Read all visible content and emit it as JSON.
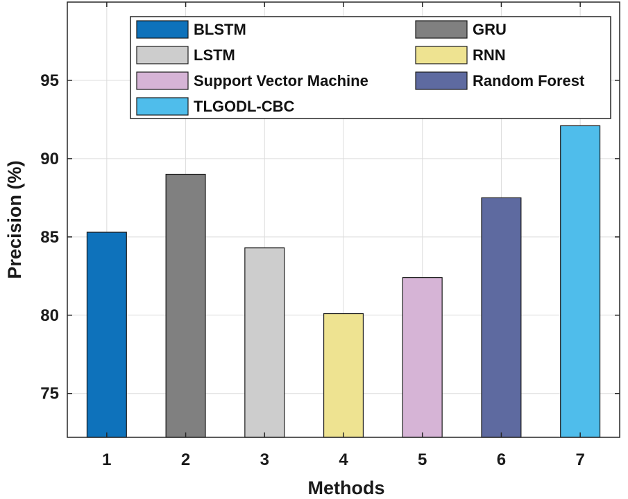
{
  "chart_data": {
    "type": "bar",
    "title": "",
    "xlabel": "Methods",
    "ylabel": "Precision (%)",
    "categories": [
      "1",
      "2",
      "3",
      "4",
      "5",
      "6",
      "7"
    ],
    "values": [
      85.3,
      89.0,
      84.3,
      80.1,
      82.4,
      87.5,
      92.1
    ],
    "ylim": [
      72.2,
      100
    ],
    "yticks": [
      75,
      80,
      85,
      90,
      95
    ],
    "grid": true,
    "legend_position": "top",
    "series": [
      {
        "name": "BLSTM",
        "color": "#0E72BB"
      },
      {
        "name": "GRU",
        "color": "#808080"
      },
      {
        "name": "LSTM",
        "color": "#CDCDCD"
      },
      {
        "name": "RNN",
        "color": "#EEE391"
      },
      {
        "name": "Support Vector Machine",
        "color": "#D6B4D6"
      },
      {
        "name": "Random Forest",
        "color": "#5E6AA0"
      },
      {
        "name": "TLGODL-CBC",
        "color": "#4FBDEB"
      }
    ]
  }
}
